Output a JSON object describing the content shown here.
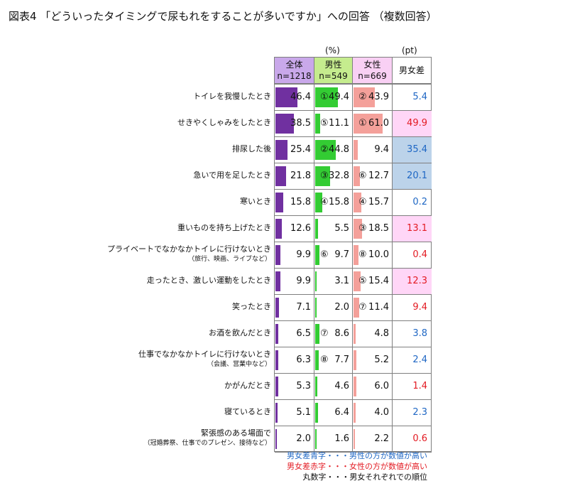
{
  "title": "図表4 「どういったタイミングで尿もれをすることが多いですか」への回答 （複数回答）",
  "unit_percent": "(%)",
  "unit_pt": "(pt)",
  "columns": {
    "all": {
      "label": "全体",
      "n": "n=1218"
    },
    "male": {
      "label": "男性",
      "n": "n=549"
    },
    "female": {
      "label": "女性",
      "n": "n=669"
    },
    "diff": {
      "label": "男女差"
    }
  },
  "colors": {
    "all_bar": "#7030a0",
    "male_bar": "#33cc33",
    "female_bar": "#f4a09a",
    "all_header": "#c9a8ea",
    "male_header": "#c5ec8e",
    "female_header": "#f9d0f4",
    "diff_blue": "#1f67c4",
    "diff_red": "#e31b23",
    "highlight_pink": "#ffd6f7",
    "highlight_blue": "#bcd3ea"
  },
  "notes": {
    "blue": "男女差青字・・・男性の方が数値が高い",
    "red": "男女差赤字・・・女性の方が数値が高い",
    "circle": "丸数字・・・男女それぞれでの順位"
  },
  "chart_data": {
    "type": "table",
    "title": "図表4 「どういったタイミングで尿もれをすることが多いですか」への回答 （複数回答）",
    "unit": "%",
    "rows": [
      {
        "label": "トイレを我慢したとき",
        "sub": "",
        "all": "46.4",
        "male": "49.4",
        "male_rank": "①",
        "female": "43.9",
        "female_rank": "②",
        "diff": "5.4",
        "diff_dir": "male",
        "highlight": ""
      },
      {
        "label": "せきやくしゃみをしたとき",
        "sub": "",
        "all": "38.5",
        "male": "11.1",
        "male_rank": "⑤",
        "female": "61.0",
        "female_rank": "①",
        "diff": "49.9",
        "diff_dir": "female",
        "highlight": "pink"
      },
      {
        "label": "排尿した後",
        "sub": "",
        "all": "25.4",
        "male": "44.8",
        "male_rank": "②",
        "female": "9.4",
        "female_rank": "",
        "diff": "35.4",
        "diff_dir": "male",
        "highlight": "blue"
      },
      {
        "label": "急いで用を足したとき",
        "sub": "",
        "all": "21.8",
        "male": "32.8",
        "male_rank": "③",
        "female": "12.7",
        "female_rank": "⑥",
        "diff": "20.1",
        "diff_dir": "male",
        "highlight": "blue"
      },
      {
        "label": "寒いとき",
        "sub": "",
        "all": "15.8",
        "male": "15.8",
        "male_rank": "④",
        "female": "15.7",
        "female_rank": "④",
        "diff": "0.2",
        "diff_dir": "male",
        "highlight": ""
      },
      {
        "label": "重いものを持ち上げたとき",
        "sub": "",
        "all": "12.6",
        "male": "5.5",
        "male_rank": "",
        "female": "18.5",
        "female_rank": "③",
        "diff": "13.1",
        "diff_dir": "female",
        "highlight": "pink"
      },
      {
        "label": "プライベートでなかなかトイレに行けないとき",
        "sub": "（旅行、映画、ライブなど）",
        "all": "9.9",
        "male": "9.7",
        "male_rank": "⑥",
        "female": "10.0",
        "female_rank": "⑧",
        "diff": "0.4",
        "diff_dir": "female",
        "highlight": ""
      },
      {
        "label": "走ったとき、激しい運動をしたとき",
        "sub": "",
        "all": "9.9",
        "male": "3.1",
        "male_rank": "",
        "female": "15.4",
        "female_rank": "⑤",
        "diff": "12.3",
        "diff_dir": "female",
        "highlight": "pink"
      },
      {
        "label": "笑ったとき",
        "sub": "",
        "all": "7.1",
        "male": "2.0",
        "male_rank": "",
        "female": "11.4",
        "female_rank": "⑦",
        "diff": "9.4",
        "diff_dir": "female",
        "highlight": ""
      },
      {
        "label": "お酒を飲んだとき",
        "sub": "",
        "all": "6.5",
        "male": "8.6",
        "male_rank": "⑦",
        "female": "4.8",
        "female_rank": "",
        "diff": "3.8",
        "diff_dir": "male",
        "highlight": ""
      },
      {
        "label": "仕事でなかなかトイレに行けないとき",
        "sub": "（会議、営業中など）",
        "all": "6.3",
        "male": "7.7",
        "male_rank": "⑧",
        "female": "5.2",
        "female_rank": "",
        "diff": "2.4",
        "diff_dir": "male",
        "highlight": ""
      },
      {
        "label": "かがんだとき",
        "sub": "",
        "all": "5.3",
        "male": "4.6",
        "male_rank": "",
        "female": "6.0",
        "female_rank": "",
        "diff": "1.4",
        "diff_dir": "female",
        "highlight": ""
      },
      {
        "label": "寝ているとき",
        "sub": "",
        "all": "5.1",
        "male": "6.4",
        "male_rank": "",
        "female": "4.0",
        "female_rank": "",
        "diff": "2.3",
        "diff_dir": "male",
        "highlight": ""
      },
      {
        "label": "緊張感のある場面で",
        "sub": "（冠婚葬祭、仕事でのプレゼン、接待など）",
        "all": "2.0",
        "male": "1.6",
        "male_rank": "",
        "female": "2.2",
        "female_rank": "",
        "diff": "0.6",
        "diff_dir": "female",
        "highlight": ""
      }
    ]
  }
}
